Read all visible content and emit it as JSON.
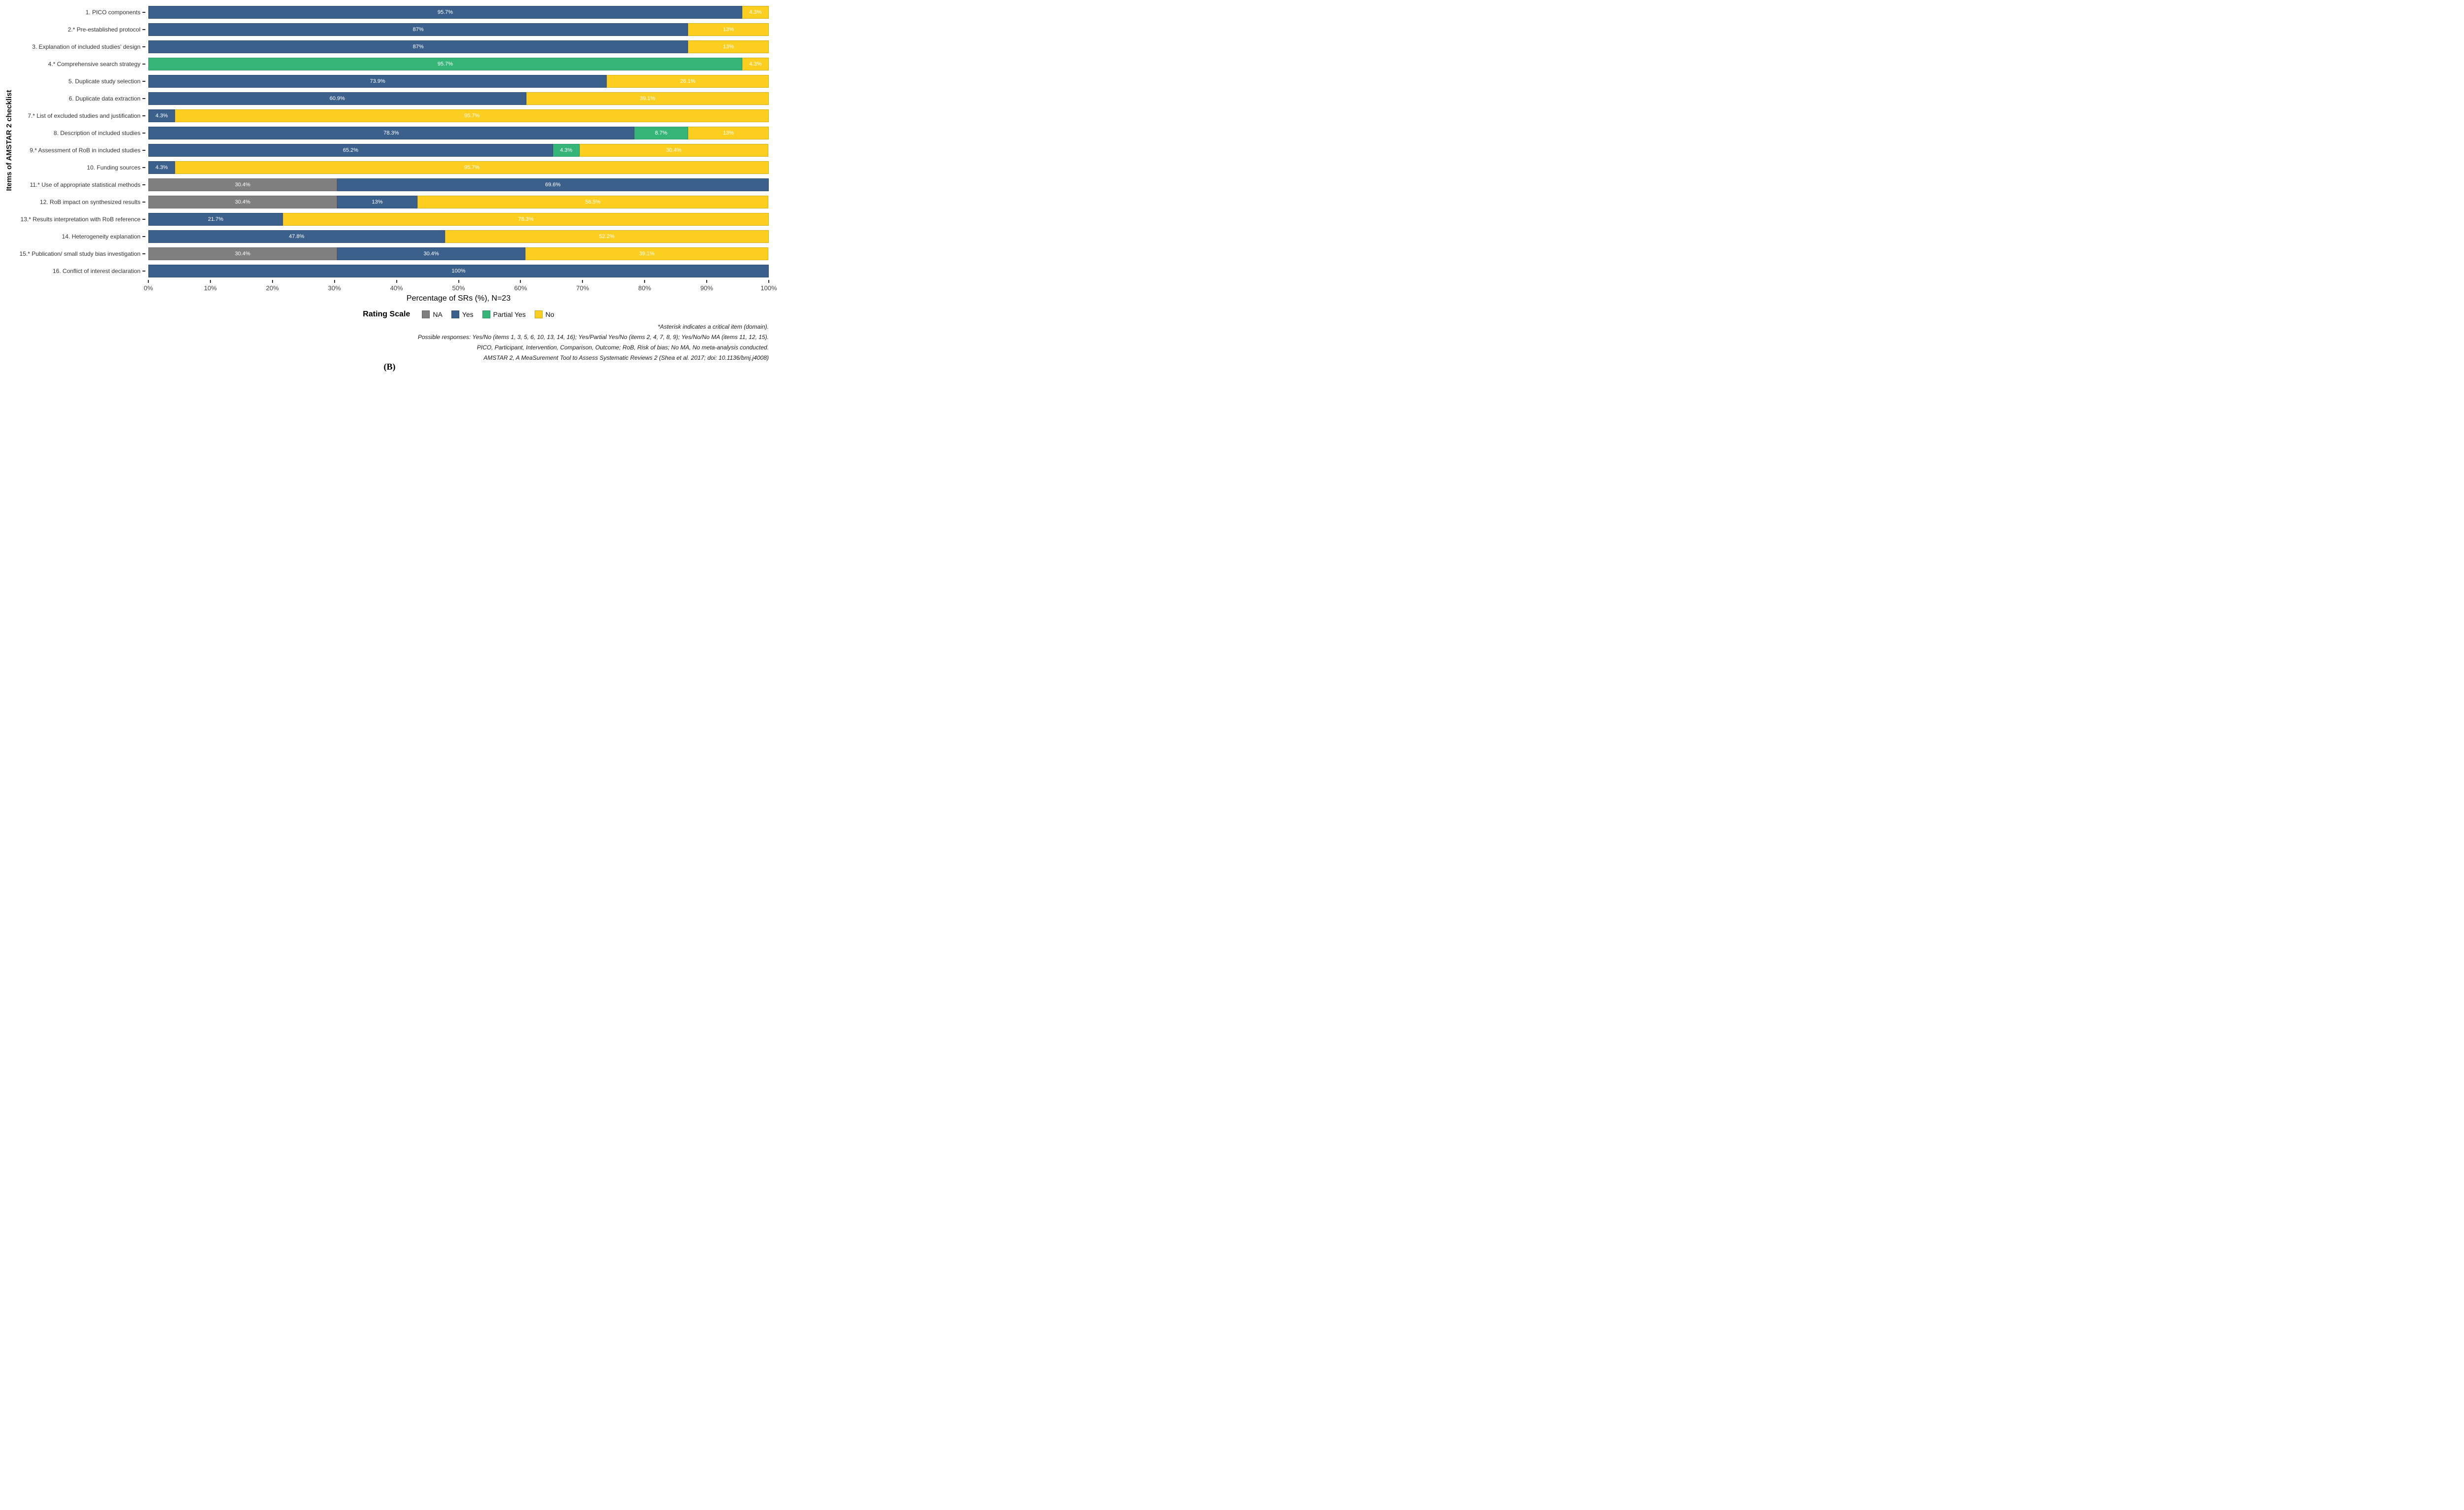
{
  "panel_label": "(B)",
  "legend": {
    "title": "Rating Scale"
  },
  "footnotes": [
    "*Asterisk indicates a critical item (domain).",
    "Possible responses: Yes/No (items 1, 3, 5, 6, 10, 13, 14, 16); Yes/Partial Yes/No (items 2, 4, 7, 8, 9); Yes/No/No MA (items 11, 12, 15).",
    "PICO, Participant, Intervention, Comparison, Outcome; RoB, Risk of bias; No MA, No meta-analysis conducted.",
    "AMSTAR 2, A MeaSurement Tool to Assess Systematic Reviews 2 (Shea et al. 2017; doi: 10.1136/bmj.j4008)"
  ],
  "chart_data": {
    "type": "bar",
    "orientation": "horizontal",
    "stacked": true,
    "title": "",
    "xlabel": "Percentage of SRs (%), N=23",
    "ylabel": "Items of AMSTAR 2 checklist",
    "xlim": [
      0,
      100
    ],
    "x_tick_labels": [
      "0%",
      "10%",
      "20%",
      "30%",
      "40%",
      "50%",
      "60%",
      "70%",
      "80%",
      "90%",
      "100%"
    ],
    "grid": false,
    "legend_position": "bottom",
    "value_label_color": "#ffffff",
    "categories": [
      "1. PICO components",
      "2.* Pre-established protocol",
      "3. Explanation of included studies' design",
      "4.* Comprehensive search strategy",
      "5. Duplicate study selection",
      "6. Duplicate data extraction",
      "7.* List of excluded studies and justification",
      "8. Description of included studies",
      "9.* Assessment of RoB in included studies",
      "10. Funding sources",
      "11.* Use of appropriate statistical methods",
      "12. RoB impact on synthesized results",
      "13.* Results interpretation with RoB reference",
      "14. Heterogeneity explanation",
      "15.* Publication/ small study bias investigation",
      "16. Conflict of interest declaration"
    ],
    "series": [
      {
        "name": "NA",
        "key": "na",
        "color": "#7F7F7F",
        "values": [
          0,
          0,
          0,
          0,
          0,
          0,
          0,
          0,
          0,
          0,
          30.4,
          30.4,
          0,
          0,
          30.4,
          0
        ]
      },
      {
        "name": "Yes",
        "key": "yes",
        "color": "#3B608C",
        "values": [
          95.7,
          87,
          87,
          0,
          73.9,
          60.9,
          4.3,
          78.3,
          65.2,
          4.3,
          69.6,
          13,
          21.7,
          47.8,
          30.4,
          100
        ]
      },
      {
        "name": "Partial Yes",
        "key": "partial-yes",
        "color": "#35B578",
        "values": [
          0,
          0,
          0,
          95.7,
          0,
          0,
          0,
          8.7,
          4.3,
          0,
          0,
          0,
          0,
          0,
          0,
          0
        ]
      },
      {
        "name": "No",
        "key": "no",
        "color": "#FCCE1F",
        "values": [
          4.3,
          13,
          13,
          4.3,
          26.1,
          39.1,
          95.7,
          13,
          30.4,
          95.7,
          0,
          56.5,
          78.3,
          52.2,
          39.1,
          0
        ]
      }
    ]
  }
}
